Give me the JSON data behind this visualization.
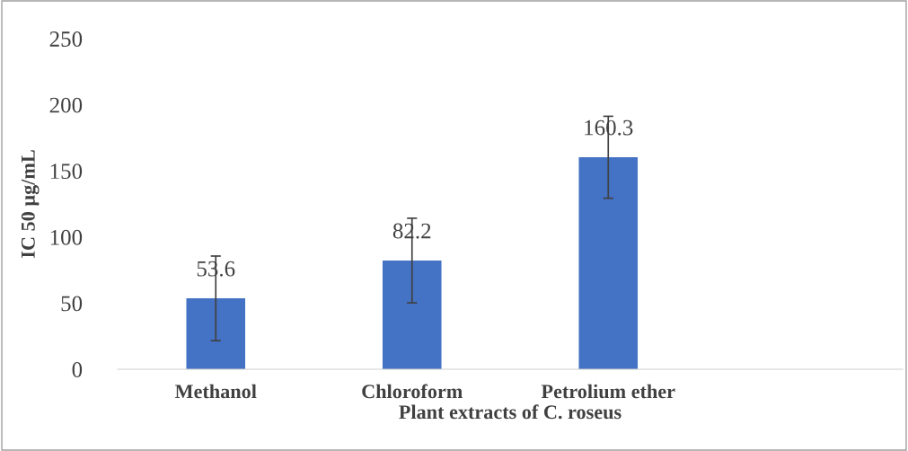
{
  "chart_data": {
    "type": "bar",
    "categories": [
      "Methanol",
      "Chloroform",
      "Petrolium ether",
      null
    ],
    "values": [
      53.6,
      82.2,
      160.3,
      null
    ],
    "errors": [
      32,
      32,
      31,
      null
    ],
    "color": "#4472c4",
    "xlabel": "Plant extracts of C. roseus",
    "ylabel": "IC 50 µg/mL",
    "ylim": [
      0,
      250
    ],
    "yticks": [
      0,
      50,
      100,
      150,
      200,
      250
    ],
    "data_labels": true,
    "grid": false,
    "legend": false
  }
}
